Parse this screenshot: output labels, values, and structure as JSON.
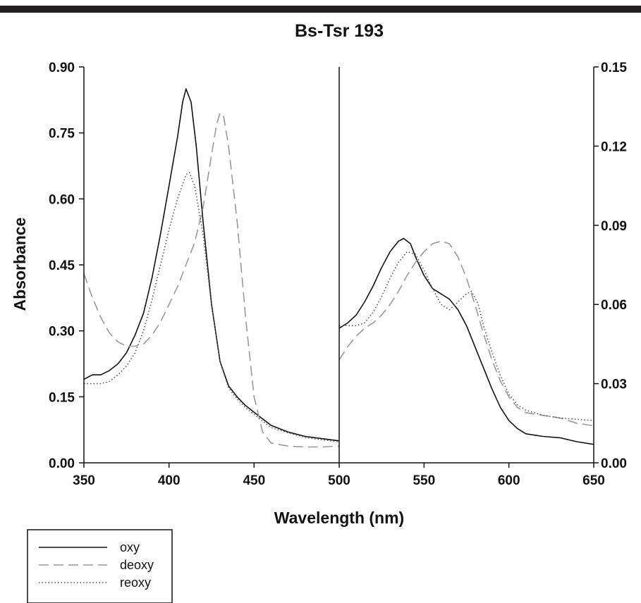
{
  "chart_data": {
    "type": "line",
    "title": "Bs-Tsr 193",
    "xlabel": "Wavelength (nm)",
    "ylabel_left": "Absorbance",
    "grid": false,
    "legend_position": "bottom-left",
    "panels": [
      {
        "name": "soret",
        "xlim": [
          350,
          500
        ],
        "ylim": [
          0,
          0.9
        ],
        "x_ticks": [
          350,
          400,
          450,
          500
        ],
        "y_ticks": [
          "0.00",
          "0.15",
          "0.30",
          "0.45",
          "0.60",
          "0.75",
          "0.90"
        ],
        "y_axis": "left",
        "series": [
          {
            "name": "oxy",
            "color": "#111111",
            "dash": "solid",
            "points": [
              [
                350,
                0.19
              ],
              [
                355,
                0.2
              ],
              [
                360,
                0.2
              ],
              [
                365,
                0.21
              ],
              [
                370,
                0.225
              ],
              [
                375,
                0.25
              ],
              [
                380,
                0.29
              ],
              [
                385,
                0.34
              ],
              [
                390,
                0.42
              ],
              [
                395,
                0.52
              ],
              [
                400,
                0.63
              ],
              [
                405,
                0.74
              ],
              [
                408,
                0.82
              ],
              [
                410,
                0.85
              ],
              [
                413,
                0.82
              ],
              [
                416,
                0.72
              ],
              [
                420,
                0.55
              ],
              [
                425,
                0.36
              ],
              [
                430,
                0.23
              ],
              [
                435,
                0.175
              ],
              [
                440,
                0.15
              ],
              [
                445,
                0.13
              ],
              [
                450,
                0.115
              ],
              [
                455,
                0.1
              ],
              [
                460,
                0.085
              ],
              [
                470,
                0.07
              ],
              [
                480,
                0.06
              ],
              [
                490,
                0.055
              ],
              [
                500,
                0.05
              ]
            ]
          },
          {
            "name": "deoxy",
            "color": "#999999",
            "dash": "long-dash",
            "points": [
              [
                350,
                0.43
              ],
              [
                355,
                0.375
              ],
              [
                360,
                0.33
              ],
              [
                365,
                0.295
              ],
              [
                370,
                0.275
              ],
              [
                375,
                0.265
              ],
              [
                380,
                0.265
              ],
              [
                385,
                0.27
              ],
              [
                390,
                0.29
              ],
              [
                395,
                0.32
              ],
              [
                400,
                0.36
              ],
              [
                405,
                0.4
              ],
              [
                410,
                0.45
              ],
              [
                415,
                0.5
              ],
              [
                420,
                0.58
              ],
              [
                425,
                0.7
              ],
              [
                428,
                0.77
              ],
              [
                430,
                0.795
              ],
              [
                432,
                0.79
              ],
              [
                435,
                0.72
              ],
              [
                440,
                0.55
              ],
              [
                445,
                0.33
              ],
              [
                450,
                0.15
              ],
              [
                455,
                0.07
              ],
              [
                460,
                0.045
              ],
              [
                470,
                0.038
              ],
              [
                480,
                0.036
              ],
              [
                490,
                0.036
              ],
              [
                500,
                0.038
              ]
            ]
          },
          {
            "name": "reoxy",
            "color": "#555555",
            "dash": "dotted",
            "points": [
              [
                350,
                0.18
              ],
              [
                355,
                0.18
              ],
              [
                360,
                0.18
              ],
              [
                365,
                0.185
              ],
              [
                370,
                0.2
              ],
              [
                375,
                0.22
              ],
              [
                380,
                0.25
              ],
              [
                385,
                0.3
              ],
              [
                390,
                0.37
              ],
              [
                395,
                0.45
              ],
              [
                400,
                0.53
              ],
              [
                405,
                0.6
              ],
              [
                410,
                0.655
              ],
              [
                412,
                0.66
              ],
              [
                415,
                0.63
              ],
              [
                420,
                0.52
              ],
              [
                425,
                0.36
              ],
              [
                430,
                0.23
              ],
              [
                435,
                0.17
              ],
              [
                440,
                0.145
              ],
              [
                445,
                0.125
              ],
              [
                450,
                0.11
              ],
              [
                455,
                0.095
              ],
              [
                460,
                0.08
              ],
              [
                470,
                0.068
              ],
              [
                480,
                0.058
              ],
              [
                490,
                0.052
              ],
              [
                500,
                0.048
              ]
            ]
          }
        ]
      },
      {
        "name": "q-band",
        "xlim": [
          500,
          650
        ],
        "ylim": [
          0,
          0.15
        ],
        "x_ticks": [
          550,
          600,
          650
        ],
        "y_ticks": [
          "0.00",
          "0.03",
          "0.06",
          "0.09",
          "0.12",
          "0.15"
        ],
        "y_axis": "right",
        "series": [
          {
            "name": "oxy",
            "color": "#111111",
            "dash": "solid",
            "points": [
              [
                500,
                0.051
              ],
              [
                505,
                0.053
              ],
              [
                510,
                0.056
              ],
              [
                515,
                0.061
              ],
              [
                520,
                0.067
              ],
              [
                525,
                0.074
              ],
              [
                530,
                0.08
              ],
              [
                535,
                0.084
              ],
              [
                538,
                0.085
              ],
              [
                542,
                0.083
              ],
              [
                545,
                0.078
              ],
              [
                550,
                0.071
              ],
              [
                555,
                0.066
              ],
              [
                560,
                0.064
              ],
              [
                565,
                0.062
              ],
              [
                570,
                0.058
              ],
              [
                575,
                0.052
              ],
              [
                580,
                0.044
              ],
              [
                585,
                0.036
              ],
              [
                590,
                0.028
              ],
              [
                595,
                0.021
              ],
              [
                600,
                0.016
              ],
              [
                605,
                0.013
              ],
              [
                610,
                0.011
              ],
              [
                620,
                0.01
              ],
              [
                630,
                0.0095
              ],
              [
                640,
                0.008
              ],
              [
                650,
                0.007
              ]
            ]
          },
          {
            "name": "deoxy",
            "color": "#999999",
            "dash": "long-dash",
            "points": [
              [
                500,
                0.039
              ],
              [
                505,
                0.044
              ],
              [
                510,
                0.048
              ],
              [
                515,
                0.051
              ],
              [
                520,
                0.053
              ],
              [
                525,
                0.056
              ],
              [
                530,
                0.06
              ],
              [
                535,
                0.065
              ],
              [
                540,
                0.071
              ],
              [
                545,
                0.076
              ],
              [
                550,
                0.08
              ],
              [
                555,
                0.083
              ],
              [
                560,
                0.084
              ],
              [
                565,
                0.083
              ],
              [
                570,
                0.078
              ],
              [
                575,
                0.07
              ],
              [
                580,
                0.06
              ],
              [
                585,
                0.049
              ],
              [
                590,
                0.039
              ],
              [
                595,
                0.031
              ],
              [
                600,
                0.025
              ],
              [
                605,
                0.021
              ],
              [
                610,
                0.019
              ],
              [
                620,
                0.018
              ],
              [
                630,
                0.017
              ],
              [
                640,
                0.015
              ],
              [
                650,
                0.014
              ]
            ]
          },
          {
            "name": "reoxy",
            "color": "#555555",
            "dash": "dotted",
            "points": [
              [
                500,
                0.052
              ],
              [
                505,
                0.052
              ],
              [
                510,
                0.052
              ],
              [
                515,
                0.053
              ],
              [
                520,
                0.057
              ],
              [
                525,
                0.063
              ],
              [
                530,
                0.07
              ],
              [
                535,
                0.076
              ],
              [
                540,
                0.08
              ],
              [
                545,
                0.079
              ],
              [
                550,
                0.073
              ],
              [
                555,
                0.066
              ],
              [
                560,
                0.06
              ],
              [
                565,
                0.058
              ],
              [
                570,
                0.061
              ],
              [
                575,
                0.064
              ],
              [
                578,
                0.065
              ],
              [
                582,
                0.06
              ],
              [
                585,
                0.052
              ],
              [
                590,
                0.042
              ],
              [
                595,
                0.033
              ],
              [
                600,
                0.026
              ],
              [
                605,
                0.022
              ],
              [
                610,
                0.02
              ],
              [
                620,
                0.018
              ],
              [
                630,
                0.017
              ],
              [
                640,
                0.0165
              ],
              [
                650,
                0.016
              ]
            ]
          }
        ]
      }
    ],
    "legend": [
      "oxy",
      "deoxy",
      "reoxy"
    ]
  }
}
